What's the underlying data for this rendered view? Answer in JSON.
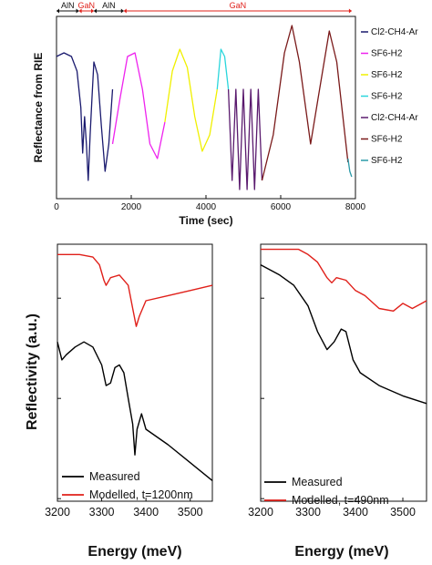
{
  "chart_data": [
    {
      "type": "line",
      "xlabel": "Time (sec)",
      "ylabel": "Reflectance from RIE",
      "xlim": [
        0,
        8000
      ],
      "xticks": [
        "0",
        "2000",
        "4000",
        "6000",
        "8000"
      ],
      "segments": [
        {
          "label": "AlN",
          "range": [
            0,
            600
          ],
          "color": "#111111"
        },
        {
          "label": "GaN",
          "range": [
            600,
            1000
          ],
          "color": "#e0201a"
        },
        {
          "label": "AlN",
          "range": [
            1000,
            1800
          ],
          "color": "#111111"
        },
        {
          "label": "GaN",
          "range": [
            1800,
            7900
          ],
          "color": "#e0201a"
        }
      ],
      "series": [
        {
          "name": "Cl2-CH4-Ar",
          "color": "#1a1a6e",
          "x": [
            0,
            200,
            400,
            550,
            650,
            700,
            750,
            800,
            850,
            900,
            950,
            1000,
            1100,
            1200,
            1300,
            1400,
            1500
          ],
          "y": [
            0.78,
            0.8,
            0.78,
            0.7,
            0.5,
            0.25,
            0.45,
            0.3,
            0.1,
            0.35,
            0.55,
            0.75,
            0.68,
            0.4,
            0.15,
            0.3,
            0.6
          ]
        },
        {
          "name": "SF6-H2",
          "color": "#ee22ee",
          "x": [
            1500,
            1700,
            1900,
            2100,
            2300,
            2500,
            2700,
            2900
          ],
          "y": [
            0.3,
            0.55,
            0.78,
            0.8,
            0.6,
            0.3,
            0.22,
            0.42
          ]
        },
        {
          "name": "SF6-H2",
          "color": "#f0f000",
          "x": [
            2900,
            3100,
            3300,
            3500,
            3700,
            3900,
            4100,
            4300
          ],
          "y": [
            0.42,
            0.7,
            0.82,
            0.72,
            0.45,
            0.26,
            0.35,
            0.6
          ]
        },
        {
          "name": "SF6-H2",
          "color": "#2ad6dc",
          "x": [
            4300,
            4400,
            4500,
            4600
          ],
          "y": [
            0.6,
            0.82,
            0.78,
            0.6
          ]
        },
        {
          "name": "Cl2-CH4-Ar",
          "color": "#5a1a6e",
          "x": [
            4600,
            4700,
            4800,
            4900,
            5000,
            5100,
            5200,
            5300,
            5400,
            5500
          ],
          "y": [
            0.6,
            0.1,
            0.6,
            0.05,
            0.6,
            0.05,
            0.6,
            0.05,
            0.6,
            0.1
          ]
        },
        {
          "name": "SF6-H2",
          "color": "#7a1a1a",
          "x": [
            5500,
            5800,
            6100,
            6300,
            6500,
            6800,
            7000,
            7300,
            7500,
            7800
          ],
          "y": [
            0.1,
            0.35,
            0.8,
            0.95,
            0.75,
            0.3,
            0.55,
            0.92,
            0.75,
            0.2
          ]
        },
        {
          "name": "SF6-H2",
          "color": "#2a9aa8",
          "x": [
            7800,
            7850,
            7900
          ],
          "y": [
            0.22,
            0.15,
            0.12
          ]
        }
      ],
      "legend": [
        "Cl2-CH4-Ar",
        "SF6-H2",
        "SF6-H2",
        "SF6-H2",
        "Cl2-CH4-Ar",
        "SF6-H2",
        "SF6-H2"
      ]
    },
    {
      "type": "line",
      "xlabel": "Energy (meV)",
      "ylabel": "Reflectivity (a.u.)",
      "xlim": [
        3200,
        3550
      ],
      "xticks": [
        "3200",
        "3300",
        "3400",
        "3500"
      ],
      "series": [
        {
          "name": "Measured",
          "color": "#000000",
          "x": [
            3200,
            3210,
            3220,
            3240,
            3260,
            3280,
            3300,
            3310,
            3320,
            3330,
            3340,
            3350,
            3360,
            3370,
            3375,
            3380,
            3390,
            3400,
            3450,
            3500,
            3550
          ],
          "y": [
            0.62,
            0.55,
            0.57,
            0.6,
            0.62,
            0.6,
            0.53,
            0.45,
            0.46,
            0.52,
            0.53,
            0.5,
            0.4,
            0.3,
            0.18,
            0.28,
            0.34,
            0.28,
            0.22,
            0.15,
            0.08
          ]
        },
        {
          "name": "Modelled, t=1200nm",
          "color": "#e0201a",
          "x": [
            3200,
            3250,
            3280,
            3295,
            3305,
            3310,
            3320,
            3340,
            3360,
            3370,
            3378,
            3385,
            3400,
            3450,
            3500,
            3550
          ],
          "y": [
            0.96,
            0.96,
            0.95,
            0.92,
            0.86,
            0.84,
            0.87,
            0.88,
            0.84,
            0.75,
            0.68,
            0.72,
            0.78,
            0.8,
            0.82,
            0.84
          ]
        }
      ],
      "legend": [
        "Measured",
        "Modelled, t=1200nm"
      ]
    },
    {
      "type": "line",
      "xlabel": "Energy (meV)",
      "ylabel": "",
      "xlim": [
        3200,
        3550
      ],
      "xticks": [
        "3200",
        "3300",
        "3400",
        "3500"
      ],
      "series": [
        {
          "name": "Measured",
          "color": "#000000",
          "x": [
            3200,
            3240,
            3270,
            3300,
            3320,
            3340,
            3355,
            3370,
            3380,
            3395,
            3410,
            3450,
            3500,
            3550
          ],
          "y": [
            0.92,
            0.88,
            0.84,
            0.76,
            0.66,
            0.59,
            0.62,
            0.67,
            0.66,
            0.55,
            0.5,
            0.45,
            0.41,
            0.38
          ]
        },
        {
          "name": "Modelled, t=490nm",
          "color": "#e0201a",
          "x": [
            3200,
            3280,
            3300,
            3320,
            3340,
            3350,
            3360,
            3380,
            3400,
            3420,
            3450,
            3480,
            3500,
            3520,
            3540,
            3550
          ],
          "y": [
            0.98,
            0.98,
            0.96,
            0.93,
            0.87,
            0.85,
            0.87,
            0.86,
            0.82,
            0.8,
            0.75,
            0.74,
            0.77,
            0.75,
            0.77,
            0.78
          ]
        }
      ],
      "legend": [
        "Measured",
        "Modelled, t=490nm"
      ]
    }
  ]
}
